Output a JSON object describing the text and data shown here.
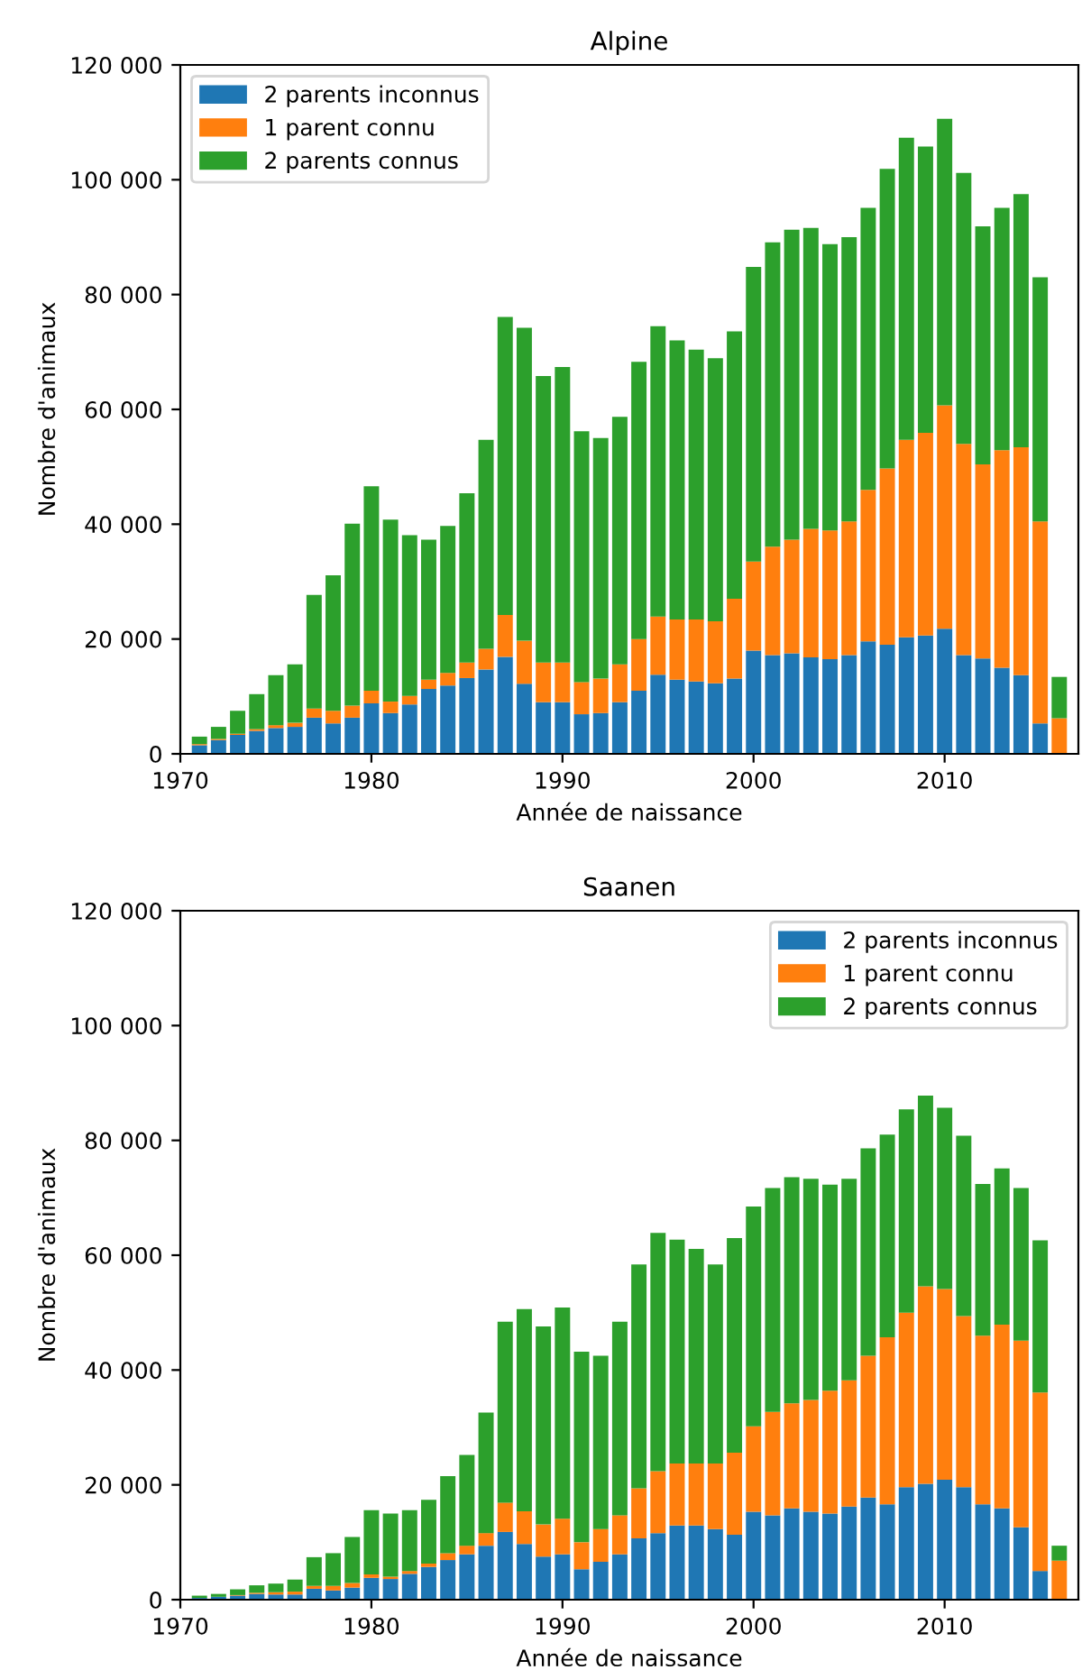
{
  "chart_data": [
    {
      "type": "bar",
      "title": "Alpine",
      "xlabel": "Année de naissance",
      "ylabel": "Nombre d'animaux",
      "stacked": true,
      "legend": "top left",
      "x": [
        1971,
        1972,
        1973,
        1974,
        1975,
        1976,
        1977,
        1978,
        1979,
        1980,
        1981,
        1982,
        1983,
        1984,
        1985,
        1986,
        1987,
        1988,
        1989,
        1990,
        1991,
        1992,
        1993,
        1994,
        1995,
        1996,
        1997,
        1998,
        1999,
        2000,
        2001,
        2002,
        2003,
        2004,
        2005,
        2006,
        2007,
        2008,
        2009,
        2010,
        2011,
        2012,
        2013,
        2014,
        2015,
        2016
      ],
      "series": [
        {
          "name": "2 parents inconnus",
          "color": "#1f77b4",
          "values": [
            1500,
            2400,
            3300,
            4000,
            4500,
            4700,
            6300,
            5300,
            6300,
            8800,
            7100,
            8600,
            11300,
            11900,
            13200,
            14700,
            16900,
            12200,
            9000,
            9000,
            6900,
            7100,
            9000,
            11000,
            13800,
            12900,
            12600,
            12300,
            13100,
            18000,
            17200,
            17500,
            16800,
            16500,
            17200,
            19600,
            19000,
            20300,
            20600,
            21800,
            17200,
            16600,
            15000,
            13700,
            5300,
            0
          ]
        },
        {
          "name": "1 parent connu",
          "color": "#ff7f0e",
          "values": [
            200,
            200,
            200,
            300,
            500,
            700,
            1600,
            2200,
            2100,
            2200,
            2000,
            1500,
            1600,
            2200,
            2700,
            3600,
            7300,
            7500,
            6900,
            6900,
            5600,
            6000,
            6600,
            9000,
            10100,
            10500,
            10800,
            10800,
            13900,
            15500,
            18900,
            19800,
            22400,
            22400,
            23300,
            26400,
            30700,
            34400,
            35300,
            38900,
            36800,
            33800,
            37900,
            39700,
            35200,
            6200
          ]
        },
        {
          "name": "2 parents connus",
          "color": "#2ca02c",
          "values": [
            1300,
            2100,
            4000,
            6100,
            8700,
            10200,
            19800,
            23600,
            31700,
            35600,
            31700,
            28000,
            24400,
            25600,
            29500,
            36400,
            51900,
            54500,
            49900,
            51500,
            43700,
            41900,
            43100,
            48300,
            50600,
            48600,
            47000,
            45800,
            46600,
            51300,
            53000,
            54000,
            52400,
            49900,
            49500,
            49100,
            52200,
            52600,
            49900,
            49900,
            47200,
            41500,
            42200,
            44100,
            42500,
            7200
          ]
        }
      ],
      "xlim": [
        1970,
        2017
      ],
      "xticks": [
        1970,
        1980,
        1990,
        2000,
        2010
      ],
      "ylim": [
        0,
        120000
      ],
      "yticks": [
        0,
        {
          "value": 20000,
          "label": "20 000"
        },
        {
          "value": 40000,
          "label": "40 000"
        },
        {
          "value": 60000,
          "label": "60 000"
        },
        {
          "value": 80000,
          "label": "80 000"
        },
        {
          "value": 100000,
          "label": "100 000"
        },
        {
          "value": 120000,
          "label": "120 000"
        }
      ]
    },
    {
      "type": "bar",
      "title": "Saanen",
      "xlabel": "Année de naissance",
      "ylabel": "Nombre d'animaux",
      "stacked": true,
      "legend": "top right",
      "x": [
        1971,
        1972,
        1973,
        1974,
        1975,
        1976,
        1977,
        1978,
        1979,
        1980,
        1981,
        1982,
        1983,
        1984,
        1985,
        1986,
        1987,
        1988,
        1989,
        1990,
        1991,
        1992,
        1993,
        1994,
        1995,
        1996,
        1997,
        1998,
        1999,
        2000,
        2001,
        2002,
        2003,
        2004,
        2005,
        2006,
        2007,
        2008,
        2009,
        2010,
        2011,
        2012,
        2013,
        2014,
        2015,
        2016
      ],
      "series": [
        {
          "name": "2 parents inconnus",
          "color": "#1f77b4",
          "values": [
            300,
            500,
            700,
            1000,
            900,
            900,
            1900,
            1600,
            2100,
            3800,
            3600,
            4500,
            5700,
            6900,
            7900,
            9400,
            11800,
            9700,
            7500,
            7900,
            5300,
            6600,
            7900,
            10700,
            11600,
            12900,
            12900,
            12300,
            11300,
            15300,
            14700,
            15900,
            15300,
            15000,
            16200,
            17800,
            16600,
            19600,
            20200,
            20900,
            19600,
            16600,
            15900,
            12600,
            5000,
            0
          ]
        },
        {
          "name": "1 parent connu",
          "color": "#ff7f0e",
          "values": [
            0,
            0,
            100,
            200,
            400,
            500,
            500,
            800,
            800,
            600,
            400,
            500,
            600,
            1200,
            1500,
            2200,
            5100,
            5700,
            5600,
            6200,
            4700,
            5700,
            6800,
            8700,
            10800,
            10800,
            10800,
            11400,
            14300,
            14900,
            18000,
            18300,
            19500,
            21400,
            22000,
            24700,
            29100,
            30400,
            34400,
            33200,
            29800,
            29400,
            32000,
            32500,
            31100,
            6800
          ]
        },
        {
          "name": "2 parents connus",
          "color": "#2ca02c",
          "values": [
            400,
            500,
            1000,
            1300,
            1500,
            2100,
            5000,
            5700,
            8000,
            11200,
            11000,
            10600,
            11100,
            13400,
            15800,
            21000,
            31500,
            35200,
            34500,
            36800,
            33200,
            30200,
            33700,
            39000,
            41500,
            39000,
            37400,
            34700,
            37400,
            38300,
            39000,
            39400,
            38500,
            35900,
            35100,
            36100,
            35300,
            35400,
            33200,
            31600,
            31400,
            26400,
            27200,
            26600,
            26500,
            2600
          ]
        }
      ],
      "xlim": [
        1970,
        2017
      ],
      "xticks": [
        1970,
        1980,
        1990,
        2000,
        2010
      ],
      "ylim": [
        0,
        120000
      ],
      "yticks": [
        0,
        {
          "value": 20000,
          "label": "20 000"
        },
        {
          "value": 40000,
          "label": "40 000"
        },
        {
          "value": 60000,
          "label": "60 000"
        },
        {
          "value": 80000,
          "label": "80 000"
        },
        {
          "value": 100000,
          "label": "100 000"
        },
        {
          "value": 120000,
          "label": "120 000"
        }
      ]
    }
  ]
}
